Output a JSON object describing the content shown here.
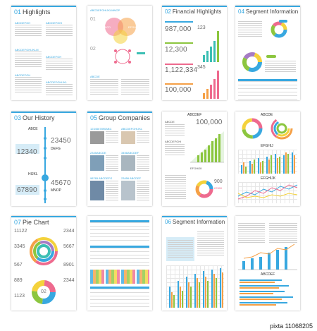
{
  "pages": {
    "p1": {
      "num": "01",
      "title": "Highlights",
      "labels": [
        "ABCDEFGH",
        "ABCDEFGHI",
        "ABCDEFGHIJKLM",
        "ABCDEFGH",
        "ABCDEFGH",
        "ABCDEFGHIJKL"
      ]
    },
    "p2": {
      "header": "ABCDEFGHIJKLMNOP",
      "n1": "01",
      "n2": "02",
      "v1": "ABCD",
      "v2": "EFGH",
      "sub": "ABCDE"
    },
    "p3": {
      "num": "02",
      "title": "Financial Highlights",
      "v1": "987,000",
      "v2": "12,300",
      "v3": "1,122,334",
      "v4": "100,000",
      "v5": "123",
      "v6": "345"
    },
    "p4": {
      "num": "04",
      "title": "Segment Information",
      "tag": "ABCDEFG"
    },
    "p5": {
      "num": "03",
      "title": "Our History",
      "a1": "ABCE",
      "a2": "12340",
      "a3": "23450",
      "a4": "DEFG",
      "a5": "HIJKL",
      "a6": "67890",
      "a7": "45670",
      "a8": "MNOP"
    },
    "p6": {
      "num": "05",
      "title": "Group Companies",
      "n1": "1234567890ABC",
      "n2": "ABCDEFGHIJKL",
      "n3": "2345ABCDE",
      "n4": "3456ABCDEF",
      "n5": "98765 ABCDEFG",
      "n6": "23456 ABCDEF"
    },
    "p7": {
      "c1": "ABCDEF",
      "c2": "ABCDE",
      "v1": "100,000",
      "c3": "ABCDEFGHI",
      "c4": "EFGHIJK",
      "v2": "900",
      "v3": "67890"
    },
    "p8": {
      "c1": "ABCDE",
      "c2": "EFGHIJ",
      "c3": "EFGHIJK"
    },
    "p9": {
      "num": "07",
      "title": "Pie Chart",
      "l1": "11122",
      "l2": "3345",
      "l3": "567",
      "l4": "889",
      "l5": "1123",
      "r1": "2344",
      "r2": "5667",
      "r3": "8901",
      "r4": "2344",
      "r5": "02"
    },
    "p11": {
      "num": "06",
      "title": "Segment Information"
    },
    "p12": {
      "c1": "ABCDEF",
      "c2": "ABCDEFGH"
    }
  },
  "watermark": "pixta  11068205",
  "colors": {
    "blue": "#38a8e0",
    "orange": "#f5a046",
    "green": "#8cc63f",
    "pink": "#ee6a8e",
    "yellow": "#f4d23c",
    "purple": "#a67cc4",
    "teal": "#3cbfb4"
  }
}
